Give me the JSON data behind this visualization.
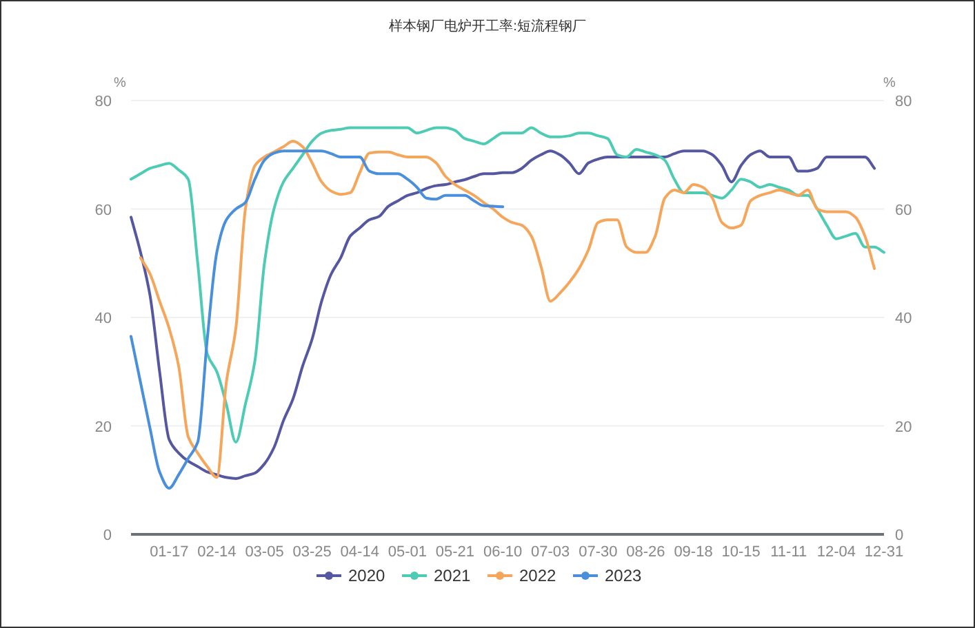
{
  "chart_data": {
    "type": "line",
    "title": "样本钢厂电炉开工率:短流程钢厂",
    "ylabel": "%",
    "y2label": "%",
    "categories": [
      null,
      null,
      null,
      null,
      "01-17",
      null,
      null,
      null,
      null,
      "02-14",
      null,
      null,
      null,
      null,
      "03-05",
      null,
      null,
      null,
      null,
      "03-25",
      null,
      null,
      null,
      null,
      "04-14",
      null,
      null,
      null,
      null,
      "05-01",
      null,
      null,
      null,
      null,
      "05-21",
      null,
      null,
      null,
      null,
      "06-10",
      null,
      null,
      null,
      null,
      "07-03",
      null,
      null,
      null,
      null,
      "07-30",
      null,
      null,
      null,
      null,
      "08-26",
      null,
      null,
      null,
      null,
      "09-18",
      null,
      null,
      null,
      null,
      "10-15",
      null,
      null,
      null,
      null,
      "11-11",
      null,
      null,
      null,
      null,
      "12-04",
      null,
      null,
      null,
      null,
      "12-31"
    ],
    "ylim": [
      0,
      80
    ],
    "yticks": [
      0,
      20,
      40,
      60,
      80
    ],
    "y2lim": [
      0,
      80
    ],
    "y2ticks": [
      0,
      20,
      40,
      60,
      80
    ],
    "grid": "y",
    "legend": "bottom",
    "series": [
      {
        "name": "2020",
        "color": "#5558a0",
        "values": [
          58.5,
          52,
          44,
          30,
          17.5,
          15,
          13.5,
          12.5,
          11.5,
          11,
          10.5,
          10.3,
          10.8,
          11.3,
          13,
          16,
          21,
          25,
          31,
          36,
          43,
          48,
          51,
          55,
          56.5,
          58,
          58.6,
          60.5,
          61.5,
          62.5,
          63,
          63.8,
          64.3,
          64.5,
          65,
          65.4,
          66,
          66.5,
          66.5,
          66.7,
          66.7,
          67.5,
          69,
          70,
          70.7,
          70,
          68.5,
          66.5,
          68.5,
          69.2,
          69.6,
          69.6,
          69.6,
          69.6,
          69.6,
          69.6,
          69.6,
          70.2,
          70.7,
          70.7,
          70.7,
          70,
          68,
          65,
          68,
          70,
          70.7,
          69.6,
          69.6,
          69.6,
          67,
          67,
          67.5,
          69.6,
          69.6,
          69.6,
          69.6,
          69.6,
          67.5,
          null
        ]
      },
      {
        "name": "2021",
        "color": "#4ecbb4",
        "values": [
          65.5,
          66.5,
          67.5,
          68,
          68.4,
          67.2,
          65.5,
          50,
          33.3,
          30,
          24,
          17,
          24,
          32,
          50,
          60,
          65,
          67.5,
          70,
          72.5,
          74,
          74.5,
          74.7,
          75,
          75,
          75,
          75,
          75,
          75,
          75,
          74,
          74.5,
          75,
          75,
          74.5,
          73,
          72.5,
          72,
          73,
          74,
          74,
          74,
          75,
          74,
          73.3,
          73.3,
          73.5,
          74,
          74,
          73.5,
          73,
          70,
          69.6,
          71,
          70.5,
          70,
          69,
          65.5,
          63,
          63,
          63,
          62.5,
          62,
          63.5,
          65.5,
          65,
          64,
          64.5,
          64,
          63.5,
          62.5,
          62.5,
          60,
          57,
          54.5,
          55,
          55.5,
          53,
          53,
          52
        ]
      },
      {
        "name": "2022",
        "color": "#f5a65b",
        "values": [
          null,
          51,
          48,
          43,
          38,
          31,
          18,
          15,
          12.5,
          10.5,
          28,
          38,
          60,
          68,
          69.6,
          70.5,
          71.5,
          72.5,
          71.5,
          68.5,
          65,
          63.3,
          62.7,
          63,
          66.7,
          70.3,
          70.5,
          70.5,
          70,
          69.6,
          69.6,
          69.6,
          68.5,
          66,
          64.5,
          63.5,
          62.5,
          61.2,
          60,
          58.5,
          57.5,
          57,
          55,
          49.5,
          43,
          44.5,
          46.5,
          49,
          52.5,
          57.5,
          58,
          58,
          53,
          52,
          52,
          55,
          62,
          63.5,
          63,
          64.5,
          64,
          62,
          57.5,
          56.5,
          57,
          61.5,
          62.5,
          63,
          63.5,
          63,
          62.5,
          63.5,
          60,
          59.5,
          59.5,
          59.5,
          58.5,
          55,
          49,
          null
        ]
      },
      {
        "name": "2023",
        "color": "#4a8fdc",
        "values": [
          36.5,
          28,
          19.5,
          11.5,
          8.5,
          11,
          14,
          17,
          36,
          52,
          58,
          60,
          61.2,
          65.5,
          69,
          70.3,
          70.7,
          70.7,
          70.7,
          70.7,
          70.7,
          70.2,
          69.6,
          69.6,
          69.6,
          67,
          66.5,
          66.5,
          66.5,
          65.5,
          64,
          62,
          61.8,
          62.5,
          62.5,
          62.5,
          61.5,
          60.6,
          60.5,
          60.4,
          null,
          null,
          null,
          null,
          null,
          null,
          null,
          null,
          null,
          null,
          null,
          null,
          null,
          null,
          null,
          null,
          null,
          null,
          null,
          null,
          null,
          null,
          null,
          null,
          null,
          null,
          null,
          null,
          null,
          null,
          null,
          null,
          null,
          null,
          null,
          null,
          null,
          null,
          null,
          null
        ]
      }
    ]
  }
}
